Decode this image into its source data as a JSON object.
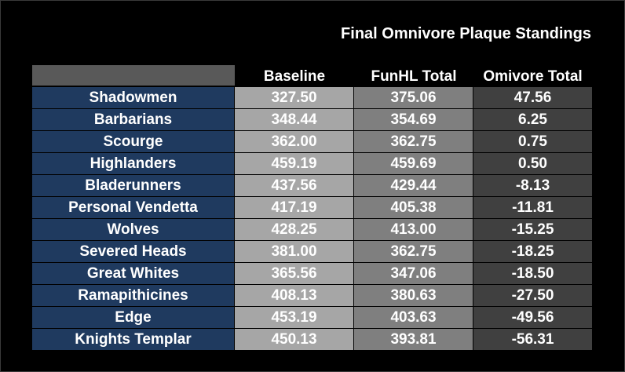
{
  "chart_data": {
    "type": "table",
    "title": "Final Omnivore Plaque Standings",
    "columns": [
      "",
      "Baseline",
      "FunHL Total",
      "Omivore Total"
    ],
    "rows": [
      {
        "team": "Shadowmen",
        "baseline": "327.50",
        "funhl": "375.06",
        "omnivore": "47.56"
      },
      {
        "team": "Barbarians",
        "baseline": "348.44",
        "funhl": "354.69",
        "omnivore": "6.25"
      },
      {
        "team": "Scourge",
        "baseline": "362.00",
        "funhl": "362.75",
        "omnivore": "0.75"
      },
      {
        "team": "Highlanders",
        "baseline": "459.19",
        "funhl": "459.69",
        "omnivore": "0.50"
      },
      {
        "team": "Bladerunners",
        "baseline": "437.56",
        "funhl": "429.44",
        "omnivore": "-8.13"
      },
      {
        "team": "Personal Vendetta",
        "baseline": "417.19",
        "funhl": "405.38",
        "omnivore": "-11.81"
      },
      {
        "team": "Wolves",
        "baseline": "428.25",
        "funhl": "413.00",
        "omnivore": "-15.25"
      },
      {
        "team": "Severed Heads",
        "baseline": "381.00",
        "funhl": "362.75",
        "omnivore": "-18.25"
      },
      {
        "team": "Great Whites",
        "baseline": "365.56",
        "funhl": "347.06",
        "omnivore": "-18.50"
      },
      {
        "team": "Ramapithicines",
        "baseline": "408.13",
        "funhl": "380.63",
        "omnivore": "-27.50"
      },
      {
        "team": "Edge",
        "baseline": "453.19",
        "funhl": "403.63",
        "omnivore": "-49.56"
      },
      {
        "team": "Knights Templar",
        "baseline": "450.13",
        "funhl": "393.81",
        "omnivore": "-56.31"
      }
    ]
  },
  "colors": {
    "background": "#000000",
    "header_blank": "#595959",
    "team_column": "#1f3a5f",
    "baseline_column": "#a6a6a6",
    "funhl_column": "#7f7f7f",
    "omnivore_column": "#404040",
    "text": "#ffffff"
  }
}
